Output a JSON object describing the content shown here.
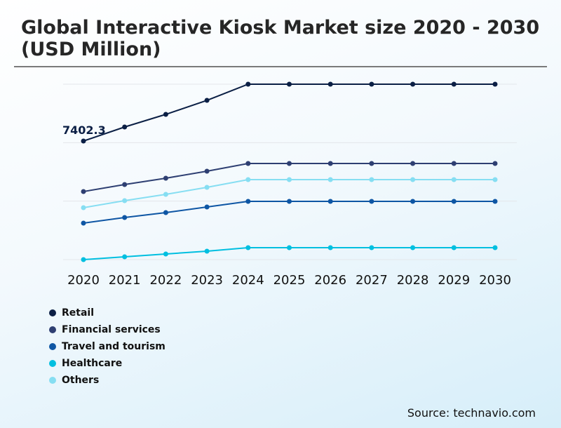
{
  "title": "Global Interactive Kiosk Market size 2020 - 2030 (USD Million)",
  "source": "Source: technavio.com",
  "chart_data": {
    "type": "line",
    "title": "Global Interactive Kiosk Market size 2020 - 2030 (USD Million)",
    "x": [
      "2020",
      "2021",
      "2022",
      "2023",
      "2024",
      "2025",
      "2026",
      "2027",
      "2028",
      "2029",
      "2030"
    ],
    "ylim": [
      0,
      10950
    ],
    "grid": true,
    "legend_placement": "bottom-left",
    "annotations": [
      {
        "series": "Retail",
        "x": "2020",
        "text": "7402.3"
      }
    ],
    "series": [
      {
        "name": "Retail",
        "color": "#0b1f45",
        "values": [
          7402.3,
          8278,
          9066,
          9942,
          10950,
          10950,
          10950,
          10950,
          10950,
          10950,
          10950
        ]
      },
      {
        "name": "Financial services",
        "color": "#2e3f72",
        "values": [
          4249,
          4687,
          5081,
          5519,
          6001,
          6001,
          6001,
          6001,
          6001,
          6001,
          6001
        ]
      },
      {
        "name": "Travel and tourism",
        "color": "#0e56a4",
        "values": [
          2278,
          2628,
          2935,
          3285,
          3635,
          3635,
          3635,
          3635,
          3635,
          3635,
          3635
        ]
      },
      {
        "name": "Healthcare",
        "color": "#00bfe0",
        "values": [
          0,
          175,
          350,
          526,
          745,
          745,
          745,
          745,
          745,
          745,
          745
        ]
      },
      {
        "name": "Others",
        "color": "#86def2",
        "values": [
          3241,
          3679,
          4073,
          4511,
          4993,
          4993,
          4993,
          4993,
          4993,
          4993,
          4993
        ]
      }
    ]
  }
}
